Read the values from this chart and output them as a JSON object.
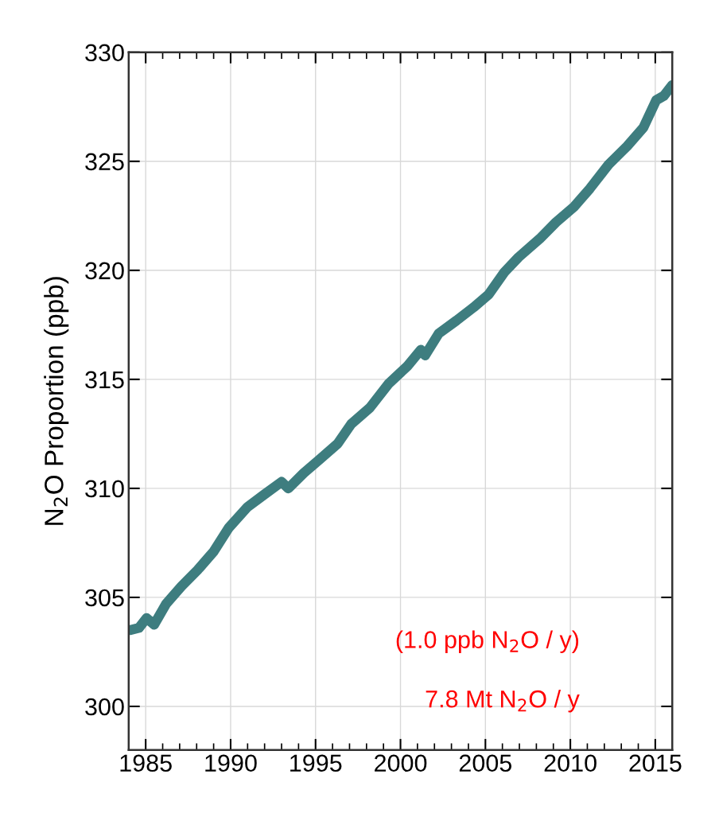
{
  "chart_data": {
    "type": "line",
    "ylabel": "N$_{2}$O Proportion (ppb)",
    "annotations": [
      "(1.0 ppb N$_{2}$O / y)",
      "7.8 Mt N$_{2}$O / y"
    ],
    "xlim": [
      1984,
      2016
    ],
    "ylim": [
      298,
      330
    ],
    "xticks": [
      {
        "value": 1984,
        "label": null
      },
      1985,
      {
        "value": 1986,
        "label": null
      },
      {
        "value": 1987,
        "label": null
      },
      {
        "value": 1988,
        "label": null
      },
      {
        "value": 1989,
        "label": null
      },
      1990,
      {
        "value": 1991,
        "label": null
      },
      {
        "value": 1992,
        "label": null
      },
      {
        "value": 1993,
        "label": null
      },
      {
        "value": 1994,
        "label": null
      },
      1995,
      {
        "value": 1996,
        "label": null
      },
      {
        "value": 1997,
        "label": null
      },
      {
        "value": 1998,
        "label": null
      },
      {
        "value": 1999,
        "label": null
      },
      2000,
      {
        "value": 2001,
        "label": null
      },
      {
        "value": 2002,
        "label": null
      },
      {
        "value": 2003,
        "label": null
      },
      {
        "value": 2004,
        "label": null
      },
      2005,
      {
        "value": 2006,
        "label": null
      },
      {
        "value": 2007,
        "label": null
      },
      {
        "value": 2008,
        "label": null
      },
      {
        "value": 2009,
        "label": null
      },
      2010,
      {
        "value": 2011,
        "label": null
      },
      {
        "value": 2012,
        "label": null
      },
      {
        "value": 2013,
        "label": null
      },
      {
        "value": 2014,
        "label": null
      },
      2015
    ],
    "yticks": [
      300,
      305,
      310,
      315,
      320,
      325,
      330
    ],
    "grid": true,
    "legend": false,
    "line_style": "solid",
    "series": [
      {
        "color": "#3e7d7f",
        "x": [
          1984.1,
          1984.6,
          1985.05,
          1985.5,
          1986.2,
          1987.1,
          1988.05,
          1989.0,
          1989.9,
          1991.0,
          1991.95,
          1993.0,
          1993.4,
          1994.3,
          1995.2,
          1996.3,
          1997.1,
          1998.2,
          1999.3,
          2000.4,
          2001.2,
          2001.45,
          2002.25,
          2003.3,
          2004.3,
          2005.2,
          2006.1,
          2006.95,
          2008.2,
          2009.15,
          2010.2,
          2011.15,
          2012.25,
          2013.35,
          2014.3,
          2015.05,
          2015.5,
          2016.0
        ],
        "values": [
          303.5,
          303.6,
          304.05,
          303.75,
          304.7,
          305.5,
          306.25,
          307.1,
          308.2,
          309.15,
          309.7,
          310.3,
          310.0,
          310.7,
          311.3,
          312.05,
          312.95,
          313.7,
          314.8,
          315.6,
          316.35,
          316.1,
          317.1,
          317.7,
          318.3,
          318.9,
          319.9,
          320.6,
          321.45,
          322.2,
          322.9,
          323.75,
          324.85,
          325.7,
          326.55,
          327.8,
          328.0,
          328.5
        ]
      }
    ]
  }
}
